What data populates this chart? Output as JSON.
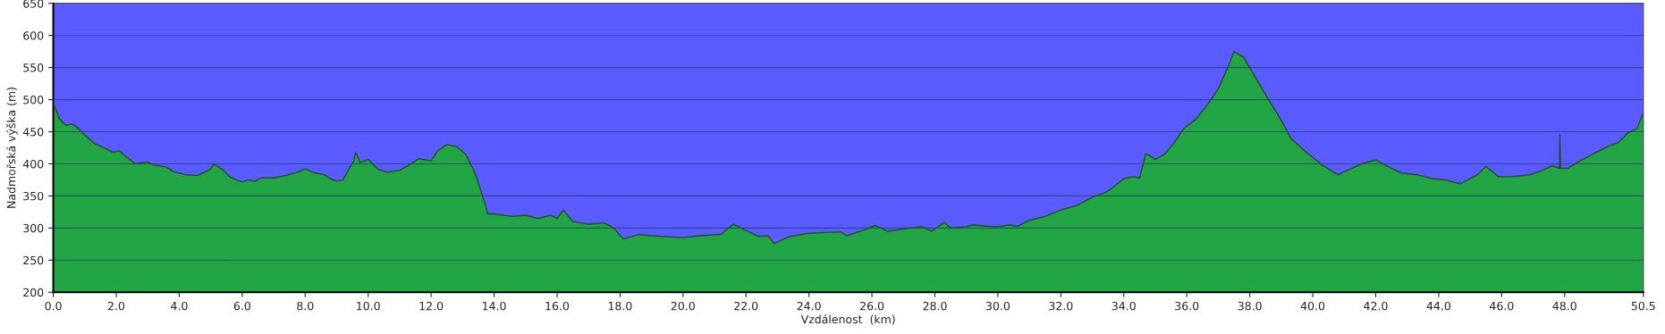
{
  "chart_data": {
    "type": "area",
    "xlabel": "Vzdálenost  (km)",
    "ylabel": "Nadmořská výška (m)",
    "xlim": [
      0,
      50.5
    ],
    "ylim": [
      200,
      650
    ],
    "xticks": [
      {
        "value": 0,
        "label": "0.0"
      },
      {
        "value": 2,
        "label": "2.0"
      },
      {
        "value": 4,
        "label": "4.0"
      },
      {
        "value": 6,
        "label": "6.0"
      },
      {
        "value": 8,
        "label": "8.0"
      },
      {
        "value": 10,
        "label": "10.0"
      },
      {
        "value": 12,
        "label": "12.0"
      },
      {
        "value": 14,
        "label": "14.0"
      },
      {
        "value": 16,
        "label": "16.0"
      },
      {
        "value": 18,
        "label": "18.0"
      },
      {
        "value": 20,
        "label": "20.0"
      },
      {
        "value": 22,
        "label": "22.0"
      },
      {
        "value": 24,
        "label": "24.0"
      },
      {
        "value": 26,
        "label": "26.0"
      },
      {
        "value": 28,
        "label": "28.0"
      },
      {
        "value": 30,
        "label": "30.0"
      },
      {
        "value": 32,
        "label": "32.0"
      },
      {
        "value": 34,
        "label": "34.0"
      },
      {
        "value": 36,
        "label": "36.0"
      },
      {
        "value": 38,
        "label": "38.0"
      },
      {
        "value": 40,
        "label": "40.0"
      },
      {
        "value": 42,
        "label": "42.0"
      },
      {
        "value": 44,
        "label": "44.0"
      },
      {
        "value": 46,
        "label": "46.0"
      },
      {
        "value": 48,
        "label": "48.0"
      },
      50.5
    ],
    "yticks": [
      200,
      250,
      300,
      350,
      400,
      450,
      500,
      550,
      600,
      650
    ],
    "grid": "y",
    "legend": false,
    "series": [
      {
        "color": "#22a544",
        "x": [
          0,
          0.2,
          0.4,
          0.6,
          0.8,
          1.0,
          1.3,
          1.6,
          1.9,
          2.1,
          2.4,
          2.6,
          3.0,
          3.2,
          3.6,
          3.8,
          4.2,
          4.6,
          5.0,
          5.1,
          5.4,
          5.6,
          5.8,
          6.0,
          6.2,
          6.4,
          6.6,
          7.0,
          7.4,
          7.8,
          8.0,
          8.3,
          8.6,
          8.8,
          9.0,
          9.2,
          9.4,
          9.55,
          9.6,
          9.75,
          10.0,
          10.3,
          10.6,
          11.0,
          11.3,
          11.6,
          12.0,
          12.2,
          12.5,
          12.8,
          13.1,
          13.4,
          13.7,
          13.8,
          14.0,
          14.6,
          15.0,
          15.4,
          15.8,
          16.0,
          16.2,
          16.5,
          17.0,
          17.5,
          17.8,
          18.1,
          18.6,
          19.0,
          20.0,
          20.5,
          21.2,
          21.6,
          22.0,
          22.4,
          22.7,
          22.9,
          23.4,
          24.0,
          25.0,
          25.2,
          25.8,
          26.1,
          26.5,
          27.2,
          27.6,
          27.9,
          28.3,
          28.5,
          29.0,
          29.2,
          29.6,
          30.0,
          30.4,
          30.6,
          31.0,
          31.5,
          32.0,
          32.5,
          33.0,
          33.4,
          33.6,
          34.0,
          34.3,
          34.5,
          34.7,
          35.0,
          35.3,
          35.6,
          35.9,
          36.3,
          36.7,
          37.0,
          37.3,
          37.5,
          37.8,
          38.2,
          38.6,
          39.0,
          39.3,
          39.8,
          40.3,
          40.8,
          41.2,
          41.6,
          42.0,
          42.5,
          42.8,
          43.3,
          43.8,
          44.2,
          44.7,
          45.2,
          45.5,
          45.9,
          46.3,
          46.9,
          47.3,
          47.6,
          47.83,
          47.85,
          47.87,
          48.1,
          48.5,
          49.0,
          49.4,
          49.7,
          50.0,
          50.3,
          50.5
        ],
        "values": [
          495,
          470,
          460,
          462,
          455,
          445,
          432,
          425,
          418,
          420,
          408,
          400,
          403,
          398,
          395,
          388,
          383,
          382,
          392,
          400,
          390,
          380,
          375,
          372,
          375,
          373,
          378,
          378,
          382,
          388,
          392,
          386,
          383,
          377,
          373,
          375,
          393,
          405,
          418,
          402,
          407,
          392,
          387,
          390,
          398,
          408,
          405,
          420,
          430,
          427,
          415,
          385,
          340,
          322,
          322,
          318,
          320,
          315,
          320,
          315,
          328,
          310,
          306,
          308,
          300,
          283,
          290,
          288,
          285,
          288,
          290,
          306,
          296,
          287,
          288,
          276,
          287,
          292,
          294,
          288,
          298,
          304,
          295,
          300,
          302,
          295,
          309,
          300,
          302,
          305,
          303,
          302,
          305,
          302,
          312,
          318,
          328,
          335,
          348,
          355,
          361,
          377,
          380,
          378,
          416,
          407,
          415,
          433,
          455,
          470,
          495,
          517,
          550,
          575,
          566,
          533,
          500,
          468,
          440,
          418,
          398,
          383,
          392,
          401,
          406,
          393,
          386,
          383,
          377,
          375,
          369,
          382,
          396,
          380,
          380,
          383,
          390,
          397,
          393,
          446,
          393,
          393,
          405,
          418,
          428,
          433,
          448,
          455,
          480
        ]
      }
    ]
  }
}
